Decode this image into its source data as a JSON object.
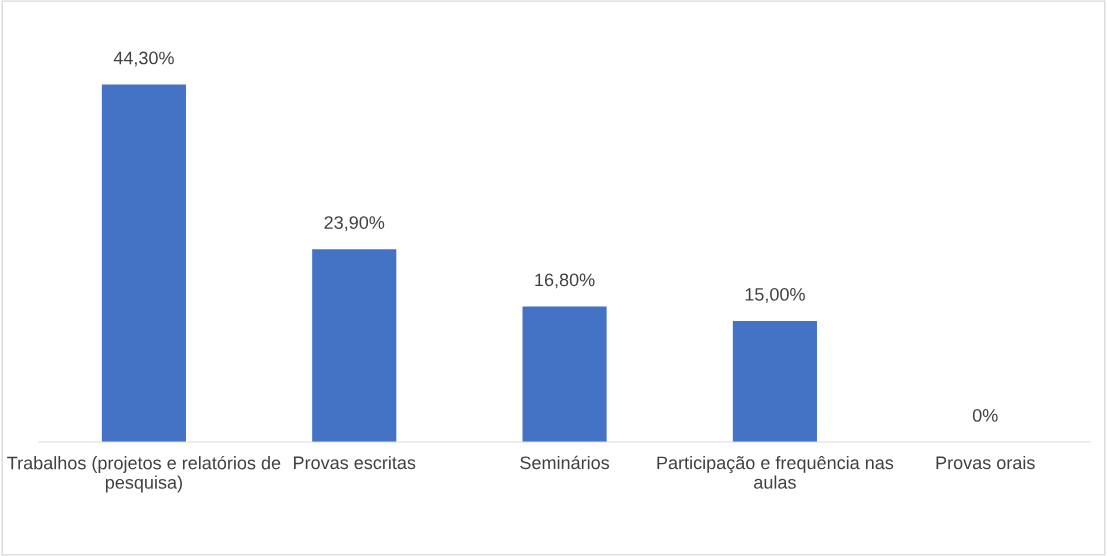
{
  "chart_data": {
    "type": "bar",
    "categories": [
      "Trabalhos (projetos e relatórios de pesquisa)",
      "Provas escritas",
      "Seminários",
      "Participação e frequência nas aulas",
      "Provas orais"
    ],
    "values": [
      44.3,
      23.9,
      16.8,
      15.0,
      0
    ],
    "color": "#4472c4",
    "value_labels": [
      "44,30%",
      "23,90%",
      "16,80%",
      "15,00%",
      "0%"
    ],
    "grid": false,
    "legend": false,
    "tick_labels": "x"
  }
}
